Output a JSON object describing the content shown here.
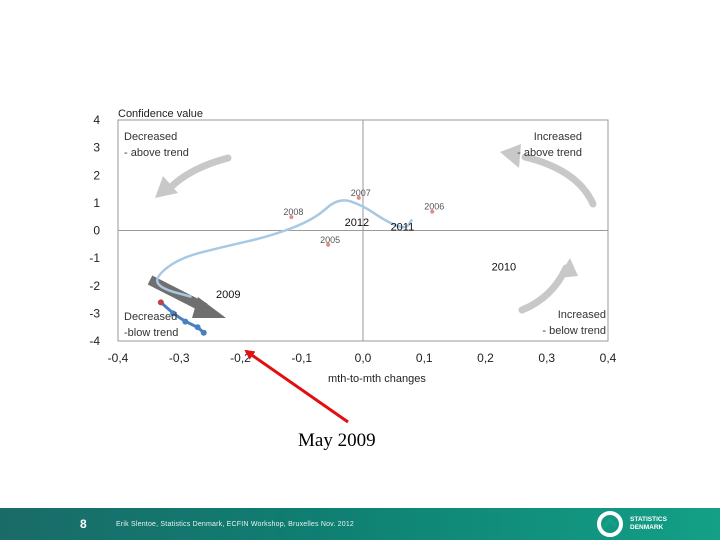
{
  "chart_data": {
    "type": "line",
    "title": "Confidence value",
    "xlabel": "mth-to-mth  changes",
    "ylabel": "",
    "xlim": [
      -0.4,
      0.4
    ],
    "ylim": [
      -4,
      4
    ],
    "x_ticks": [
      "-0,4",
      "-0,3",
      "-0,2",
      "-0,1",
      "0,0",
      "0,1",
      "0,2",
      "0,3",
      "0,4"
    ],
    "y_ticks": [
      "4",
      "3",
      "2",
      "1",
      "0",
      "-1",
      "-2",
      "-3",
      "-4"
    ],
    "series": [
      {
        "color": "#a9c8e2",
        "x": [
          0.08,
          0.07,
          0.04,
          0.0,
          -0.04,
          -0.08,
          -0.15,
          -0.23,
          -0.3,
          -0.34,
          -0.33,
          -0.28
        ],
        "y": [
          0.4,
          0.05,
          0.3,
          0.9,
          1.2,
          0.4,
          -0.2,
          -0.6,
          -1.0,
          -1.7,
          -2.1,
          -2.4
        ]
      },
      {
        "color": "#4a7fc1",
        "x": [
          -0.33,
          -0.31,
          -0.29,
          -0.27,
          -0.26
        ],
        "y": [
          -2.6,
          -3.0,
          -3.3,
          -3.5,
          -3.7
        ]
      }
    ],
    "year_labels": [
      {
        "label": "2007",
        "x": -0.02,
        "y": 1.4
      },
      {
        "label": "2006",
        "x": 0.1,
        "y": 0.9
      },
      {
        "label": "2008",
        "x": -0.13,
        "y": 0.7
      },
      {
        "label": "2005",
        "x": -0.07,
        "y": -0.3
      }
    ],
    "year_labels_bold": [
      {
        "label": "2012",
        "x": -0.03,
        "y": 0.3
      },
      {
        "label": "2011",
        "x": 0.045,
        "y": 0.15
      },
      {
        "label": "2010",
        "x": 0.21,
        "y": -1.3
      },
      {
        "label": "2009",
        "x": -0.24,
        "y": -2.3
      }
    ],
    "quadrants": {
      "top_left": [
        "Decreased",
        "- above trend"
      ],
      "top_right": [
        "Increased",
        "- above trend"
      ],
      "bottom_left": [
        "Decreased",
        "-blow trend"
      ],
      "bottom_right": [
        "Increased",
        "- below trend"
      ]
    }
  },
  "annotation": {
    "text": "May 2009"
  },
  "footer": {
    "page_number": "8",
    "text": "Erik Slentoe, Statistics Denmark, ECFIN Workshop, Bruxelles Nov. 2012",
    "logo_line1": "STATISTICS",
    "logo_line2": "DENMARK"
  },
  "colors": {
    "trail_light": "#a9c8e2",
    "trail_dark": "#4a7fc1",
    "arrow_gray": "#c8c8c8",
    "annotation_arrow": "#e01010",
    "footer_teal": "#13a087"
  }
}
